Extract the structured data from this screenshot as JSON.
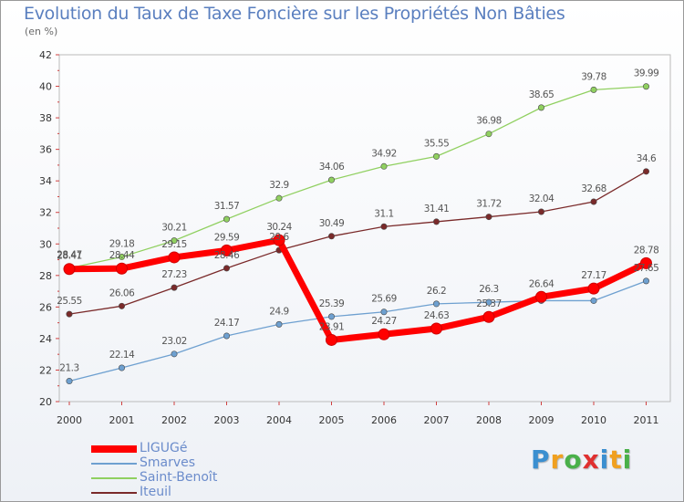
{
  "chart_data": {
    "type": "line",
    "title": "Evolution du Taux de Taxe Foncière sur les Propriétés Non Bâties",
    "unit_label": "(en %)",
    "x": [
      "2000",
      "2001",
      "2002",
      "2003",
      "2004",
      "2005",
      "2006",
      "2007",
      "2008",
      "2009",
      "2010",
      "2011"
    ],
    "ylim": [
      20,
      42
    ],
    "yticks": [
      "20",
      "22",
      "24",
      "26",
      "28",
      "30",
      "32",
      "34",
      "36",
      "38",
      "40",
      "42"
    ],
    "grid": false,
    "legend_position": "bottom-left",
    "series": [
      {
        "name": "LIGUGé",
        "color": "#ff0000",
        "width": 7,
        "marker_r": 6,
        "values": [
          28.41,
          28.44,
          29.15,
          29.59,
          30.24,
          23.91,
          24.27,
          24.63,
          25.37,
          26.64,
          27.17,
          28.78
        ],
        "labels": [
          "28.41",
          "28.44",
          "29.15",
          "29.59",
          "30.24",
          "23.91",
          "24.27",
          "24.63",
          "25.37",
          "26.64",
          "27.17",
          "28.78"
        ]
      },
      {
        "name": "Smarves",
        "color": "#6ea0d0",
        "width": 1.3,
        "marker_r": 3.2,
        "values": [
          21.3,
          22.14,
          23.02,
          24.17,
          24.9,
          25.39,
          25.69,
          26.2,
          26.3,
          26.4,
          26.4,
          27.65
        ],
        "labels": [
          "21.3",
          "22.14",
          "23.02",
          "24.17",
          "24.9",
          "25.39",
          "25.69",
          "26.2",
          "26.3",
          "",
          "",
          "27.65"
        ]
      },
      {
        "name": "Saint-Benoît",
        "color": "#90d060",
        "width": 1.3,
        "marker_r": 3.2,
        "values": [
          28.47,
          29.18,
          30.21,
          31.57,
          32.9,
          34.06,
          34.92,
          35.55,
          36.98,
          38.65,
          39.78,
          39.99
        ],
        "labels": [
          "28.47",
          "29.18",
          "30.21",
          "31.57",
          "32.9",
          "34.06",
          "34.92",
          "35.55",
          "36.98",
          "38.65",
          "39.78",
          "39.99"
        ]
      },
      {
        "name": "Iteuil",
        "color": "#7a2a2a",
        "width": 1.3,
        "marker_r": 3.2,
        "values": [
          25.55,
          26.06,
          27.23,
          28.46,
          29.6,
          30.49,
          31.1,
          31.41,
          31.72,
          32.04,
          32.68,
          34.6
        ],
        "labels": [
          "25.55",
          "26.06",
          "27.23",
          "28.46",
          "29.6",
          "30.49",
          "31.1",
          "31.41",
          "31.72",
          "32.04",
          "32.68",
          "34.6"
        ]
      }
    ]
  },
  "logo": {
    "letters": [
      "P",
      "r",
      "o",
      "x",
      "i",
      "t",
      "i"
    ],
    "colors": [
      "#3b8fd0",
      "#f0a020",
      "#4ab04a",
      "#e03030",
      "#3b8fd0",
      "#f0a020",
      "#4ab04a"
    ]
  }
}
